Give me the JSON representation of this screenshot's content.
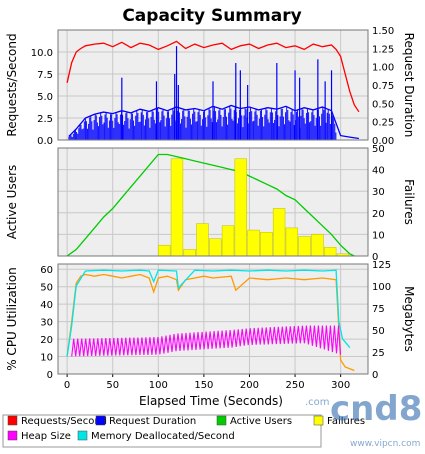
{
  "title": "Capacity Summary",
  "colors": {
    "panel_bg": "#eeeeee",
    "grid": "#c8c8c8",
    "requests": "#ff0000",
    "request_duration": "#0000ff",
    "active_users": "#00cc00",
    "failures_bar": "#ffff00",
    "cpu": "#ff9900",
    "heap": "#ff00ff",
    "memory_dealloc": "#00e5e5"
  },
  "legend": [
    {
      "label": "Requests/Second",
      "color": "#ff0000"
    },
    {
      "label": "Request Duration",
      "color": "#0000ff"
    },
    {
      "label": "Active Users",
      "color": "#00cc00"
    },
    {
      "label": "Failures",
      "color": "#ffff00"
    },
    {
      "label": "Heap Size",
      "color": "#ff00ff"
    },
    {
      "label": "Memory Deallocated/Second",
      "color": "#00e5e5"
    }
  ],
  "watermark": "cnd8 .com www.vipcn.com",
  "chart_data": [
    {
      "type": "line",
      "panel": "top",
      "ylabel": "Requests/Second",
      "y2label": "Request Duration",
      "xlim": [
        -10,
        330
      ],
      "ylim": [
        0,
        12.5
      ],
      "yticks": [
        0.0,
        2.5,
        5.0,
        7.5,
        10.0
      ],
      "ytick_labels": [
        "0.0",
        "2.5",
        "5.0",
        "7.5",
        "10.0"
      ],
      "y2lim": [
        0,
        1.5
      ],
      "y2ticks": [
        0.0,
        0.25,
        0.5,
        0.75,
        1.0,
        1.25,
        1.5
      ],
      "y2tick_labels": [
        "0.00",
        "0.25",
        "0.50",
        "0.75",
        "1.00",
        "1.25",
        "1.50"
      ],
      "series": [
        {
          "name": "Requests/Second",
          "axis": "left",
          "color": "#ff0000",
          "x": [
            0,
            5,
            10,
            15,
            20,
            30,
            40,
            50,
            60,
            70,
            80,
            90,
            100,
            110,
            120,
            130,
            140,
            150,
            160,
            170,
            180,
            190,
            200,
            210,
            220,
            230,
            240,
            250,
            260,
            270,
            280,
            290,
            295,
            300,
            305,
            310,
            315,
            320
          ],
          "y": [
            6.5,
            8.8,
            10.0,
            10.4,
            10.7,
            10.9,
            11.0,
            10.6,
            11.1,
            10.5,
            11.0,
            10.8,
            10.3,
            10.7,
            11.2,
            10.4,
            10.9,
            10.5,
            10.8,
            11.0,
            10.3,
            10.7,
            10.9,
            10.4,
            10.8,
            11.0,
            10.5,
            10.7,
            10.3,
            10.9,
            10.6,
            10.8,
            10.3,
            9.5,
            7.5,
            5.5,
            4.0,
            3.2
          ]
        },
        {
          "name": "Request Duration",
          "axis": "right",
          "color": "#0000ff",
          "x": [
            2,
            10,
            20,
            30,
            40,
            50,
            60,
            70,
            80,
            90,
            100,
            110,
            120,
            130,
            140,
            150,
            160,
            170,
            180,
            190,
            200,
            210,
            220,
            230,
            240,
            250,
            260,
            270,
            280,
            290,
            300,
            310,
            320
          ],
          "y": [
            0.05,
            0.15,
            0.3,
            0.35,
            0.38,
            0.36,
            0.4,
            0.37,
            0.42,
            0.39,
            0.44,
            0.4,
            0.45,
            0.41,
            0.43,
            0.4,
            0.46,
            0.42,
            0.47,
            0.43,
            0.45,
            0.41,
            0.44,
            0.42,
            0.46,
            0.4,
            0.44,
            0.41,
            0.45,
            0.4,
            0.06,
            0.04,
            0.02
          ],
          "spikes": [
            [
              118,
              0.9
            ],
            [
              120,
              1.28
            ],
            [
              122,
              0.75
            ],
            [
              60,
              0.85
            ],
            [
              98,
              0.8
            ],
            [
              160,
              0.8
            ],
            [
              185,
              1.05
            ],
            [
              190,
              0.95
            ],
            [
              198,
              0.75
            ],
            [
              230,
              1.05
            ],
            [
              250,
              0.95
            ],
            [
              255,
              0.85
            ],
            [
              275,
              1.1
            ],
            [
              283,
              0.8
            ],
            [
              290,
              0.95
            ]
          ]
        }
      ]
    },
    {
      "type": "line",
      "panel": "middle",
      "ylabel": "Active Users",
      "y2label": "Failures",
      "xlim": [
        -10,
        330
      ],
      "ylim": [
        0,
        50
      ],
      "y2lim": [
        0,
        50
      ],
      "y2ticks": [
        0,
        10,
        20,
        30,
        40,
        50
      ],
      "series": [
        {
          "name": "Active Users",
          "axis": "right",
          "color": "#00cc00",
          "x": [
            0,
            10,
            20,
            30,
            40,
            50,
            60,
            70,
            80,
            90,
            100,
            110,
            120,
            130,
            140,
            150,
            160,
            170,
            180,
            190,
            200,
            210,
            220,
            230,
            240,
            250,
            260,
            270,
            280,
            290,
            300,
            305,
            310,
            315
          ],
          "y": [
            0,
            3,
            8,
            13,
            18,
            22,
            27,
            32,
            37,
            42,
            47,
            47,
            46,
            45,
            44,
            43,
            42,
            41,
            40,
            39,
            37,
            35,
            33,
            31,
            28,
            26,
            22,
            18,
            14,
            10,
            5,
            3,
            1,
            0
          ]
        },
        {
          "name": "Failures",
          "type": "bar",
          "axis": "right",
          "color": "#ffff00",
          "x": [
            100,
            114,
            128,
            142,
            156,
            170,
            184,
            198,
            212,
            226,
            240,
            254,
            268,
            282,
            296
          ],
          "width": 13,
          "y": [
            5,
            45,
            3,
            15,
            8,
            14,
            45,
            12,
            11,
            22,
            13,
            9,
            10,
            4,
            1
          ]
        }
      ]
    },
    {
      "type": "line",
      "panel": "bottom",
      "ylabel": "% CPU Utilization",
      "y2label": "Megabytes",
      "xlabel": "Elapsed Time (Seconds)",
      "xlim": [
        -10,
        330
      ],
      "xticks": [
        0,
        50,
        100,
        150,
        200,
        250,
        300
      ],
      "ylim": [
        0,
        63
      ],
      "yticks": [
        0,
        10,
        20,
        30,
        40,
        50,
        60
      ],
      "y2lim": [
        0,
        125
      ],
      "y2ticks": [
        0,
        25,
        50,
        75,
        100,
        125
      ],
      "series": [
        {
          "name": "% CPU Utilization",
          "axis": "left",
          "color": "#ff9900",
          "x": [
            0,
            5,
            10,
            15,
            20,
            30,
            40,
            50,
            60,
            70,
            80,
            90,
            95,
            100,
            110,
            120,
            122,
            130,
            140,
            150,
            160,
            180,
            185,
            200,
            220,
            240,
            260,
            280,
            295,
            300,
            305,
            315
          ],
          "y": [
            10,
            30,
            52,
            56,
            57,
            56,
            57,
            56,
            55,
            56,
            57,
            55,
            47,
            55,
            56,
            54,
            48,
            54,
            55,
            56,
            55,
            56,
            48,
            55,
            54,
            55,
            54,
            55,
            54,
            8,
            4,
            2
          ]
        },
        {
          "name": "Memory Deallocated/Second",
          "axis": "right",
          "color": "#00e5e5",
          "x": [
            0,
            5,
            10,
            20,
            40,
            60,
            80,
            90,
            95,
            100,
            120,
            122,
            140,
            160,
            180,
            200,
            220,
            240,
            260,
            280,
            295,
            298,
            302,
            310
          ],
          "y": [
            20,
            55,
            100,
            117,
            118,
            117,
            118,
            117,
            105,
            118,
            117,
            98,
            118,
            117,
            118,
            117,
            118,
            117,
            118,
            117,
            118,
            60,
            40,
            30
          ]
        },
        {
          "name": "Heap Size",
          "axis": "right",
          "type": "band",
          "color": "#ff00ff",
          "x": [
            5,
            100,
            120,
            180,
            200,
            260,
            300
          ],
          "low": [
            20,
            22,
            26,
            30,
            33,
            35,
            22
          ],
          "high": [
            40,
            42,
            46,
            50,
            52,
            55,
            55
          ]
        }
      ]
    }
  ]
}
